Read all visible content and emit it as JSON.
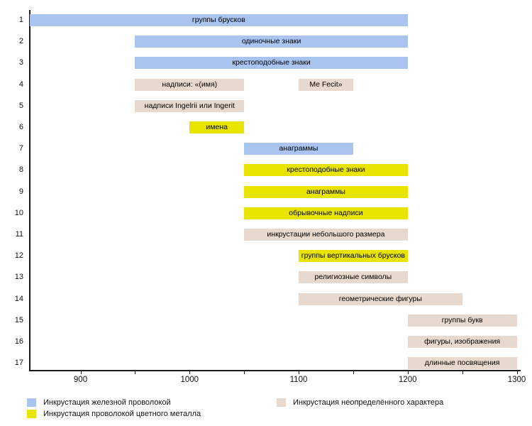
{
  "chart_data": {
    "type": "bar",
    "subtype": "horizontal_range_timeline",
    "title": "",
    "xlabel": "",
    "ylabel": "",
    "x_axis": {
      "unit": "year",
      "xlim": [
        853,
        1307
      ],
      "major_ticks": [
        900,
        1000,
        1100,
        1200,
        1300
      ],
      "minor_ticks": [
        950,
        1050,
        1150,
        1250
      ],
      "grid": false
    },
    "legend": {
      "position": "bottom",
      "items": [
        {
          "key": "iron",
          "label": "Инкрустация железной проволокой",
          "color": "#a9c4ee"
        },
        {
          "key": "nonferrous",
          "label": "Инкрустация проволокой цветного металла",
          "color": "#e8e400"
        },
        {
          "key": "undetermined",
          "label": "Инкрустация неопределённого характера",
          "color": "#e7d9cd"
        }
      ]
    },
    "rows": [
      {
        "num": "1",
        "bars": [
          {
            "label": "группы брусков",
            "start": 850,
            "end": 1200,
            "series": "iron"
          }
        ]
      },
      {
        "num": "2",
        "bars": [
          {
            "label": "одиночные знаки",
            "start": 950,
            "end": 1200,
            "series": "iron"
          }
        ]
      },
      {
        "num": "3",
        "bars": [
          {
            "label": "крестоподобные знаки",
            "start": 950,
            "end": 1200,
            "series": "iron"
          }
        ]
      },
      {
        "num": "4",
        "bars": [
          {
            "label": "надписи: «(имя)",
            "start": 950,
            "end": 1050,
            "series": "undetermined"
          },
          {
            "label": "Me Fecit»",
            "start": 1100,
            "end": 1150,
            "series": "undetermined"
          }
        ]
      },
      {
        "num": "5",
        "bars": [
          {
            "label": "надписи Ingelrii или Ingerit",
            "start": 950,
            "end": 1050,
            "series": "undetermined"
          }
        ]
      },
      {
        "num": "6",
        "bars": [
          {
            "label": "имена",
            "start": 1000,
            "end": 1050,
            "series": "nonferrous"
          }
        ]
      },
      {
        "num": "7",
        "bars": [
          {
            "label": "анаграммы",
            "start": 1050,
            "end": 1150,
            "series": "iron"
          }
        ]
      },
      {
        "num": "8",
        "bars": [
          {
            "label": "крестоподобные знаки",
            "start": 1050,
            "end": 1200,
            "series": "nonferrous"
          }
        ]
      },
      {
        "num": "9",
        "bars": [
          {
            "label": "анаграммы",
            "start": 1050,
            "end": 1200,
            "series": "nonferrous"
          }
        ]
      },
      {
        "num": "10",
        "bars": [
          {
            "label": "обрывочные надписи",
            "start": 1050,
            "end": 1200,
            "series": "nonferrous"
          }
        ]
      },
      {
        "num": "11",
        "bars": [
          {
            "label": "инкрустации небольшого размера",
            "start": 1050,
            "end": 1200,
            "series": "undetermined"
          }
        ]
      },
      {
        "num": "12",
        "bars": [
          {
            "label": "группы вертикальных брусков",
            "start": 1100,
            "end": 1200,
            "series": "nonferrous"
          }
        ]
      },
      {
        "num": "13",
        "bars": [
          {
            "label": "религиозные символы",
            "start": 1100,
            "end": 1200,
            "series": "undetermined"
          }
        ]
      },
      {
        "num": "14",
        "bars": [
          {
            "label": "геометрические фигуры",
            "start": 1100,
            "end": 1250,
            "series": "undetermined"
          }
        ]
      },
      {
        "num": "15",
        "bars": [
          {
            "label": "группы букв",
            "start": 1200,
            "end": 1300,
            "series": "undetermined"
          }
        ]
      },
      {
        "num": "16",
        "bars": [
          {
            "label": "фигуры, изображения",
            "start": 1200,
            "end": 1300,
            "series": "undetermined"
          }
        ]
      },
      {
        "num": "17",
        "bars": [
          {
            "label": "длинные посвящения",
            "start": 1200,
            "end": 1300,
            "series": "undetermined"
          }
        ]
      }
    ]
  }
}
